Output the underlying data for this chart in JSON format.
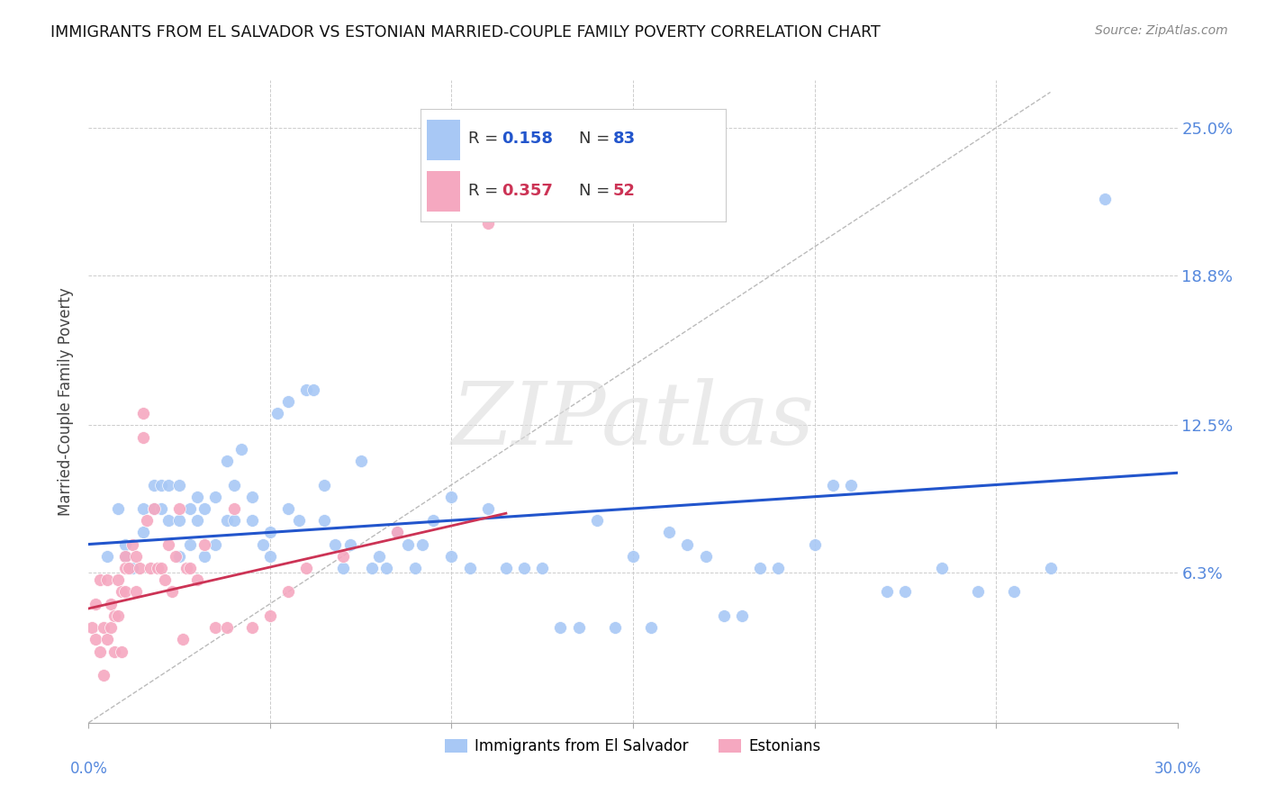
{
  "title": "IMMIGRANTS FROM EL SALVADOR VS ESTONIAN MARRIED-COUPLE FAMILY POVERTY CORRELATION CHART",
  "source": "Source: ZipAtlas.com",
  "ylabel": "Married-Couple Family Poverty",
  "xmin": 0.0,
  "xmax": 0.3,
  "ymin": 0.0,
  "ymax": 0.27,
  "yticks": [
    0.0,
    0.063,
    0.125,
    0.188,
    0.25
  ],
  "ytick_labels": [
    "",
    "6.3%",
    "12.5%",
    "18.8%",
    "25.0%"
  ],
  "blue_color": "#a8c8f5",
  "pink_color": "#f5a8c0",
  "line_blue": "#2255cc",
  "line_pink": "#cc3355",
  "diag_color": "#bbbbbb",
  "watermark": "ZIPatlas",
  "legend1_label": "Immigrants from El Salvador",
  "legend2_label": "Estonians",
  "blue_scatter_x": [
    0.005,
    0.008,
    0.01,
    0.01,
    0.012,
    0.015,
    0.015,
    0.018,
    0.018,
    0.02,
    0.02,
    0.022,
    0.022,
    0.025,
    0.025,
    0.025,
    0.028,
    0.028,
    0.03,
    0.03,
    0.032,
    0.032,
    0.035,
    0.035,
    0.038,
    0.038,
    0.04,
    0.04,
    0.042,
    0.045,
    0.045,
    0.048,
    0.05,
    0.05,
    0.052,
    0.055,
    0.055,
    0.058,
    0.06,
    0.062,
    0.065,
    0.065,
    0.068,
    0.07,
    0.072,
    0.075,
    0.078,
    0.08,
    0.082,
    0.085,
    0.088,
    0.09,
    0.092,
    0.095,
    0.1,
    0.1,
    0.105,
    0.11,
    0.115,
    0.12,
    0.125,
    0.13,
    0.135,
    0.14,
    0.145,
    0.15,
    0.155,
    0.16,
    0.165,
    0.17,
    0.175,
    0.18,
    0.185,
    0.19,
    0.2,
    0.205,
    0.21,
    0.22,
    0.225,
    0.235,
    0.245,
    0.255,
    0.265,
    0.28
  ],
  "blue_scatter_y": [
    0.07,
    0.09,
    0.07,
    0.075,
    0.065,
    0.08,
    0.09,
    0.09,
    0.1,
    0.09,
    0.1,
    0.085,
    0.1,
    0.085,
    0.07,
    0.1,
    0.09,
    0.075,
    0.095,
    0.085,
    0.07,
    0.09,
    0.095,
    0.075,
    0.11,
    0.085,
    0.1,
    0.085,
    0.115,
    0.095,
    0.085,
    0.075,
    0.08,
    0.07,
    0.13,
    0.135,
    0.09,
    0.085,
    0.14,
    0.14,
    0.085,
    0.1,
    0.075,
    0.065,
    0.075,
    0.11,
    0.065,
    0.07,
    0.065,
    0.08,
    0.075,
    0.065,
    0.075,
    0.085,
    0.07,
    0.095,
    0.065,
    0.09,
    0.065,
    0.065,
    0.065,
    0.04,
    0.04,
    0.085,
    0.04,
    0.07,
    0.04,
    0.08,
    0.075,
    0.07,
    0.045,
    0.045,
    0.065,
    0.065,
    0.075,
    0.1,
    0.1,
    0.055,
    0.055,
    0.065,
    0.055,
    0.055,
    0.065,
    0.22
  ],
  "pink_scatter_x": [
    0.001,
    0.002,
    0.002,
    0.003,
    0.003,
    0.004,
    0.004,
    0.005,
    0.005,
    0.006,
    0.006,
    0.007,
    0.007,
    0.008,
    0.008,
    0.009,
    0.009,
    0.01,
    0.01,
    0.01,
    0.011,
    0.012,
    0.013,
    0.013,
    0.014,
    0.015,
    0.015,
    0.016,
    0.017,
    0.018,
    0.019,
    0.02,
    0.021,
    0.022,
    0.023,
    0.024,
    0.025,
    0.026,
    0.027,
    0.028,
    0.03,
    0.032,
    0.035,
    0.038,
    0.04,
    0.045,
    0.05,
    0.055,
    0.06,
    0.07,
    0.085,
    0.11
  ],
  "pink_scatter_y": [
    0.04,
    0.035,
    0.05,
    0.06,
    0.03,
    0.04,
    0.02,
    0.06,
    0.035,
    0.05,
    0.04,
    0.045,
    0.03,
    0.06,
    0.045,
    0.055,
    0.03,
    0.055,
    0.07,
    0.065,
    0.065,
    0.075,
    0.055,
    0.07,
    0.065,
    0.12,
    0.13,
    0.085,
    0.065,
    0.09,
    0.065,
    0.065,
    0.06,
    0.075,
    0.055,
    0.07,
    0.09,
    0.035,
    0.065,
    0.065,
    0.06,
    0.075,
    0.04,
    0.04,
    0.09,
    0.04,
    0.045,
    0.055,
    0.065,
    0.07,
    0.08,
    0.21
  ],
  "blue_line_x": [
    0.0,
    0.3
  ],
  "blue_line_y": [
    0.075,
    0.105
  ],
  "pink_line_x": [
    0.0,
    0.115
  ],
  "pink_line_y": [
    0.048,
    0.088
  ],
  "diag_line_x": [
    0.0,
    0.265
  ],
  "diag_line_y": [
    0.0,
    0.265
  ]
}
